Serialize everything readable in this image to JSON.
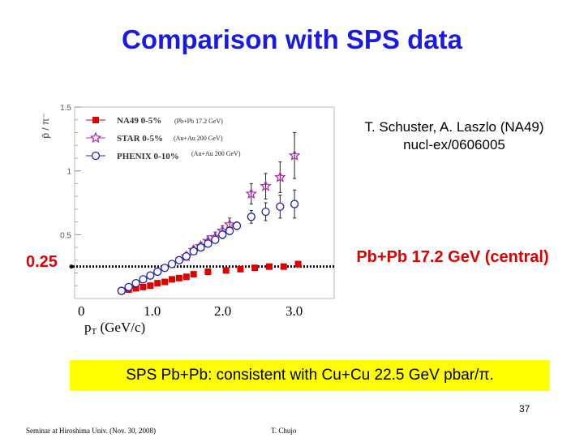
{
  "slide": {
    "title": "Comparison with SPS data",
    "reference_line1": "T. Schuster, A. Laszlo (NA49)",
    "reference_line2": "nucl-ex/0606005",
    "ref_value_label": "0.25",
    "pbpb_label": "Pb+Pb 17.2 GeV (central)",
    "summary": "SPS Pb+Pb: consistent with Cu+Cu 22.5 GeV pbar/π.",
    "summary_color": "#ffff00",
    "page_number": "37",
    "footer_left": "Seminar at Hiroshima Univ. (Nov. 30, 2008)",
    "footer_right": "T. Chujo",
    "title_color": "#1a1ae6",
    "accent_red": "#e00000"
  },
  "chart_data": {
    "type": "scatter",
    "xlabel_main": "p",
    "xlabel_sub": "T",
    "xlabel_unit": " (GeV/c)",
    "ylabel": "p̄ / π⁻",
    "xlim": [
      0,
      3.6
    ],
    "ylim": [
      0,
      1.5
    ],
    "x_ticks": [
      {
        "value": 0,
        "label": "0"
      },
      {
        "value": 1.0,
        "label": "1.0"
      },
      {
        "value": 2.0,
        "label": "2.0"
      },
      {
        "value": 3.0,
        "label": "3.0"
      }
    ],
    "y_ticks": [
      {
        "value": 0.5,
        "label": "0.5"
      },
      {
        "value": 1,
        "label": "1"
      },
      {
        "value": 1.5,
        "label": "1.5"
      }
    ],
    "reference_line": {
      "y": 0.25,
      "label": "0.25"
    },
    "series": [
      {
        "name": "NA49 0-5%",
        "system": "(Pb+Pb 17.2 GeV)",
        "color": "#e00000",
        "marker": "filled-square",
        "x": [
          0.65,
          0.75,
          0.85,
          0.95,
          1.05,
          1.15,
          1.25,
          1.35,
          1.45,
          1.55,
          1.65,
          1.85,
          2.1,
          2.3,
          2.5,
          2.7,
          2.9,
          3.1
        ],
        "y": [
          0.06,
          0.07,
          0.08,
          0.09,
          0.1,
          0.12,
          0.13,
          0.15,
          0.16,
          0.17,
          0.19,
          0.21,
          0.22,
          0.23,
          0.24,
          0.25,
          0.25,
          0.27
        ]
      },
      {
        "name": "STAR 0-5%",
        "system": "(Au+Au 200 GeV)",
        "color": "#b02fb0",
        "marker": "open-star",
        "x": [
          1.55,
          1.65,
          1.75,
          1.85,
          1.95,
          2.05,
          2.15,
          2.45,
          2.65,
          2.85,
          3.05
        ],
        "y": [
          0.33,
          0.38,
          0.41,
          0.45,
          0.48,
          0.53,
          0.58,
          0.82,
          0.88,
          0.95,
          1.12
        ],
        "yerr": [
          0.03,
          0.03,
          0.03,
          0.04,
          0.04,
          0.04,
          0.05,
          0.08,
          0.1,
          0.12,
          0.18
        ]
      },
      {
        "name": "PHENIX 0-10%",
        "system": "(Au+Au 200 GeV)",
        "color": "#2020b0",
        "marker": "open-circle",
        "x": [
          0.65,
          0.75,
          0.85,
          0.95,
          1.05,
          1.15,
          1.25,
          1.35,
          1.45,
          1.55,
          1.65,
          1.75,
          1.85,
          1.95,
          2.05,
          2.15,
          2.25,
          2.45,
          2.65,
          2.85,
          3.05
        ],
        "y": [
          0.06,
          0.09,
          0.12,
          0.15,
          0.18,
          0.21,
          0.24,
          0.27,
          0.3,
          0.33,
          0.37,
          0.4,
          0.43,
          0.46,
          0.5,
          0.53,
          0.57,
          0.64,
          0.68,
          0.72,
          0.74
        ],
        "yerr": [
          0.01,
          0.01,
          0.01,
          0.01,
          0.01,
          0.01,
          0.01,
          0.01,
          0.01,
          0.02,
          0.02,
          0.02,
          0.02,
          0.02,
          0.03,
          0.03,
          0.03,
          0.05,
          0.07,
          0.09,
          0.11
        ]
      }
    ]
  }
}
